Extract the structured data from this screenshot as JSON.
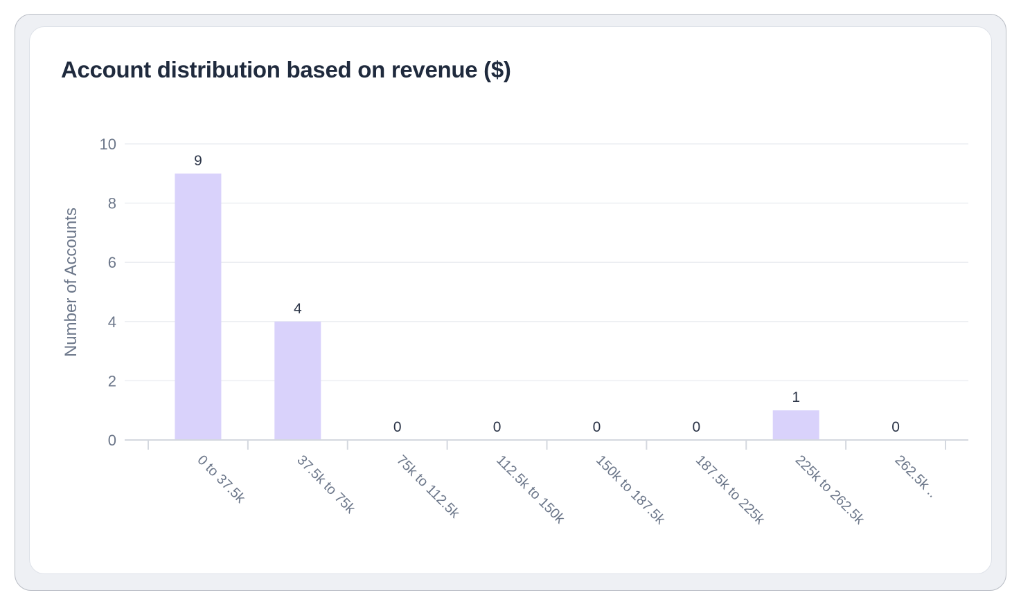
{
  "card": {
    "title": "Account distribution based on revenue ($)"
  },
  "colors": {
    "bar": "#d9d2fb",
    "gridline": "#eceef2",
    "axis": "#d4d8df",
    "tick_text": "#6b7689",
    "data_label": "#2b3447",
    "title_text": "#1f2a3d"
  },
  "chart_data": {
    "type": "bar",
    "title": "Account distribution based on revenue ($)",
    "xlabel": "",
    "ylabel": "Number of Accounts",
    "ylim": [
      0,
      10
    ],
    "yticks": [
      0,
      2,
      4,
      6,
      8,
      10
    ],
    "grid": true,
    "legend": "none",
    "categories": [
      "0 to 37.5k",
      "37.5k to 75k",
      "75k to 112.5k",
      "112.5k to 150k",
      "150k to 187.5k",
      "187.5k to 225k",
      "225k to 262.5k",
      "262.5k .."
    ],
    "values": [
      9,
      4,
      0,
      0,
      0,
      0,
      1,
      0
    ]
  }
}
